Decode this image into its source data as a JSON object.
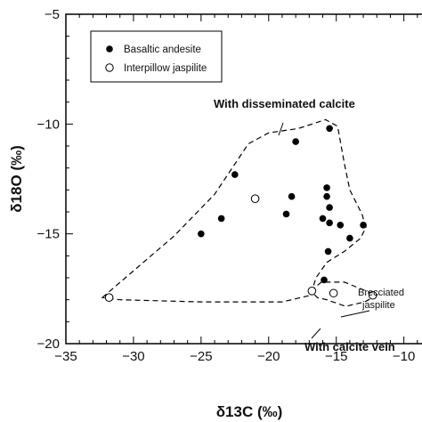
{
  "chart_data": {
    "type": "scatter",
    "xlabel": "δ13C (‰)",
    "ylabel": "δ18O (‰)",
    "xlim": [
      -35,
      -8
    ],
    "ylim": [
      -20,
      -5
    ],
    "xticks": [
      -35,
      -30,
      -25,
      -20,
      -15,
      -10
    ],
    "yticks": [
      -5,
      -10,
      -15,
      -20
    ],
    "grid": false,
    "legend_position": "top-left",
    "series": [
      {
        "name": "Basaltic andesite",
        "marker": "filled-circle",
        "color": "#000000",
        "points": [
          [
            -15.5,
            -10.2
          ],
          [
            -18.0,
            -10.8
          ],
          [
            -22.5,
            -12.3
          ],
          [
            -15.7,
            -12.9
          ],
          [
            -18.3,
            -13.3
          ],
          [
            -15.7,
            -13.3
          ],
          [
            -15.5,
            -13.8
          ],
          [
            -23.5,
            -14.3
          ],
          [
            -18.7,
            -14.1
          ],
          [
            -16.0,
            -14.3
          ],
          [
            -15.5,
            -14.5
          ],
          [
            -14.7,
            -14.6
          ],
          [
            -13.0,
            -14.6
          ],
          [
            -14.0,
            -15.2
          ],
          [
            -25.0,
            -15.0
          ],
          [
            -15.6,
            -15.8
          ],
          [
            -15.9,
            -17.1
          ]
        ]
      },
      {
        "name": "Interpillow jaspilite",
        "marker": "open-circle",
        "color": "#000000",
        "points": [
          [
            -21.0,
            -13.4
          ],
          [
            -31.8,
            -17.9
          ],
          [
            -16.8,
            -17.6
          ],
          [
            -15.2,
            -17.7
          ],
          [
            -12.3,
            -17.8
          ]
        ]
      }
    ],
    "regions": [
      {
        "label": "With disseminated calcite",
        "outline": [
          [
            -32.3,
            -17.9
          ],
          [
            -27.0,
            -15.1
          ],
          [
            -24.0,
            -13.2
          ],
          [
            -21.5,
            -10.9
          ],
          [
            -20.0,
            -10.4
          ],
          [
            -17.8,
            -10.2
          ],
          [
            -15.8,
            -9.8
          ],
          [
            -14.9,
            -10.1
          ],
          [
            -14.4,
            -11.8
          ],
          [
            -14.0,
            -13.0
          ],
          [
            -13.1,
            -14.1
          ],
          [
            -12.8,
            -14.7
          ],
          [
            -13.2,
            -15.2
          ],
          [
            -14.4,
            -15.8
          ],
          [
            -15.7,
            -16.3
          ],
          [
            -16.5,
            -17.0
          ],
          [
            -16.9,
            -17.8
          ],
          [
            -19.0,
            -18.1
          ],
          [
            -25.0,
            -18.1
          ],
          [
            -31.0,
            -18.0
          ],
          [
            -32.3,
            -17.9
          ]
        ]
      },
      {
        "label": "With calcite vein",
        "outline": [
          [
            -16.9,
            -17.6
          ],
          [
            -16.1,
            -17.2
          ],
          [
            -14.4,
            -17.2
          ],
          [
            -12.0,
            -17.8
          ],
          [
            -12.9,
            -18.1
          ],
          [
            -14.3,
            -18.3
          ],
          [
            -15.7,
            -18.0
          ],
          [
            -16.4,
            -17.9
          ],
          [
            -16.9,
            -17.6
          ]
        ]
      }
    ],
    "annotations": {
      "disseminated": "With disseminated calcite",
      "vein": "With calcite vein",
      "brecciated_line1": "Brecciated",
      "brecciated_line2": "jaspilite"
    }
  }
}
